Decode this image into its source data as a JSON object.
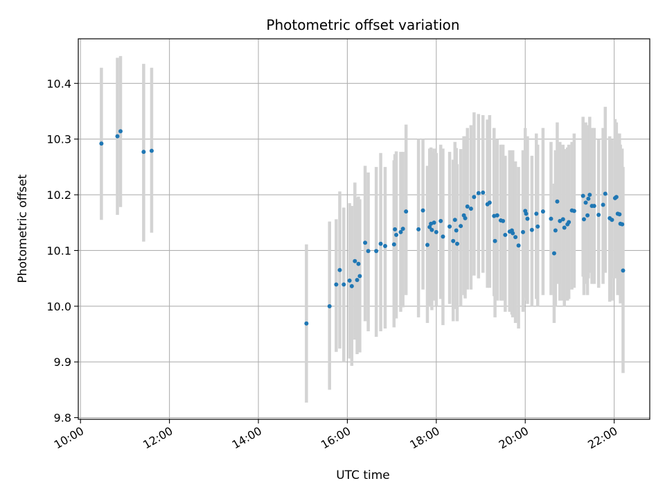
{
  "chart_data": {
    "type": "scatter",
    "title": "Photometric offset variation",
    "xlabel": "UTC time",
    "ylabel": "Photometric offset",
    "x_unit": "hours UTC",
    "xlim": [
      9.95,
      22.8
    ],
    "ylim": [
      9.797,
      10.48
    ],
    "xticks": [
      {
        "value": 10,
        "label": "10:00"
      },
      {
        "value": 12,
        "label": "12:00"
      },
      {
        "value": 14,
        "label": "14:00"
      },
      {
        "value": 16,
        "label": "16:00"
      },
      {
        "value": 18,
        "label": "18:00"
      },
      {
        "value": 20,
        "label": "20:00"
      },
      {
        "value": 22,
        "label": "22:00"
      }
    ],
    "yticks": [
      {
        "value": 9.8,
        "label": "9.8"
      },
      {
        "value": 9.9,
        "label": "9.9"
      },
      {
        "value": 10.0,
        "label": "10.0"
      },
      {
        "value": 10.1,
        "label": "10.1"
      },
      {
        "value": 10.2,
        "label": "10.2"
      },
      {
        "value": 10.3,
        "label": "10.3"
      },
      {
        "value": 10.4,
        "label": "10.4"
      }
    ],
    "grid": true,
    "point_color": "#1f77b4",
    "errorbar_color": "#d3d3d3",
    "points": [
      [
        10.47,
        10.292,
        10.155,
        10.428
      ],
      [
        10.83,
        10.305,
        10.164,
        10.446
      ],
      [
        10.9,
        10.314,
        10.178,
        10.449
      ],
      [
        11.42,
        10.277,
        10.116,
        10.435
      ],
      [
        11.6,
        10.279,
        10.132,
        10.428
      ],
      [
        15.08,
        9.969,
        9.827,
        10.111
      ],
      [
        15.6,
        10.0,
        9.85,
        10.152
      ],
      [
        15.75,
        10.039,
        9.918,
        10.156
      ],
      [
        15.83,
        10.065,
        9.924,
        10.206
      ],
      [
        15.92,
        10.039,
        9.9,
        10.177
      ],
      [
        16.05,
        10.046,
        9.906,
        10.185
      ],
      [
        16.1,
        10.036,
        9.893,
        10.18
      ],
      [
        16.17,
        10.081,
        9.94,
        10.222
      ],
      [
        16.22,
        10.047,
        9.914,
        10.195
      ],
      [
        16.28,
        10.054,
        9.917,
        10.192
      ],
      [
        16.25,
        10.076,
        9.936,
        10.197
      ],
      [
        16.4,
        10.114,
        9.973,
        10.252
      ],
      [
        16.47,
        10.099,
        9.955,
        10.24
      ],
      [
        16.65,
        10.099,
        9.945,
        10.25
      ],
      [
        16.75,
        10.112,
        9.955,
        10.275
      ],
      [
        16.85,
        10.108,
        9.96,
        10.25
      ],
      [
        17.05,
        10.111,
        9.962,
        10.262
      ],
      [
        17.07,
        10.138,
        9.988,
        10.273
      ],
      [
        17.1,
        10.128,
        9.978,
        10.278
      ],
      [
        17.2,
        10.133,
        9.99,
        10.277
      ],
      [
        17.25,
        10.139,
        9.998,
        10.277
      ],
      [
        17.32,
        10.17,
        10.02,
        10.326
      ],
      [
        17.6,
        10.138,
        9.98,
        10.3
      ],
      [
        17.7,
        10.172,
        10.03,
        10.3
      ],
      [
        17.8,
        10.11,
        9.97,
        10.252
      ],
      [
        17.85,
        10.142,
        10.0,
        10.283
      ],
      [
        17.88,
        10.148,
        10.01,
        10.285
      ],
      [
        17.95,
        10.15,
        10.01,
        10.283
      ],
      [
        17.9,
        10.137,
        9.993,
        10.277
      ],
      [
        18.0,
        10.133,
        10.0,
        10.275
      ],
      [
        18.1,
        10.153,
        10.013,
        10.29
      ],
      [
        18.15,
        10.125,
        9.966,
        10.283
      ],
      [
        18.3,
        10.143,
        10.004,
        10.277
      ],
      [
        18.38,
        10.117,
        9.973,
        10.263
      ],
      [
        18.42,
        10.155,
        10.015,
        10.295
      ],
      [
        18.45,
        10.136,
        9.995,
        10.284
      ],
      [
        18.47,
        10.112,
        9.973,
        10.255
      ],
      [
        18.55,
        10.144,
        10.0,
        10.282
      ],
      [
        18.62,
        10.163,
        10.02,
        10.305
      ],
      [
        18.65,
        10.158,
        10.014,
        10.305
      ],
      [
        18.7,
        10.179,
        10.03,
        10.32
      ],
      [
        18.78,
        10.175,
        10.03,
        10.325
      ],
      [
        18.85,
        10.196,
        10.055,
        10.348
      ],
      [
        18.95,
        10.203,
        10.05,
        10.345
      ],
      [
        19.05,
        10.204,
        10.06,
        10.343
      ],
      [
        19.15,
        10.183,
        10.033,
        10.335
      ],
      [
        19.2,
        10.186,
        10.033,
        10.343
      ],
      [
        19.3,
        10.162,
        10.018,
        10.32
      ],
      [
        19.32,
        10.117,
        9.98,
        10.26
      ],
      [
        19.37,
        10.163,
        10.01,
        10.3
      ],
      [
        19.45,
        10.154,
        10.01,
        10.29
      ],
      [
        19.5,
        10.153,
        10.01,
        10.29
      ],
      [
        19.55,
        10.128,
        9.99,
        10.27
      ],
      [
        19.65,
        10.134,
        9.99,
        10.28
      ],
      [
        19.7,
        10.136,
        9.985,
        10.277
      ],
      [
        19.72,
        10.131,
        9.98,
        10.28
      ],
      [
        19.78,
        10.124,
        9.97,
        10.26
      ],
      [
        19.85,
        10.109,
        9.96,
        10.25
      ],
      [
        19.95,
        10.133,
        9.99,
        10.28
      ],
      [
        20.0,
        10.171,
        10.015,
        10.32
      ],
      [
        20.02,
        10.166,
        10.01,
        10.3
      ],
      [
        20.05,
        10.157,
        10.004,
        10.305
      ],
      [
        20.15,
        10.137,
        10.0,
        10.27
      ],
      [
        20.25,
        10.166,
        10.013,
        10.31
      ],
      [
        20.28,
        10.143,
        10.0,
        10.29
      ],
      [
        20.4,
        10.17,
        10.02,
        10.32
      ],
      [
        20.58,
        10.157,
        10.02,
        10.295
      ],
      [
        20.65,
        10.095,
        9.97,
        10.22
      ],
      [
        20.68,
        10.136,
        10.0,
        10.28
      ],
      [
        20.72,
        10.188,
        10.04,
        10.33
      ],
      [
        20.78,
        10.153,
        10.01,
        10.295
      ],
      [
        20.85,
        10.156,
        10.01,
        10.29
      ],
      [
        20.88,
        10.141,
        10.0,
        10.282
      ],
      [
        20.95,
        10.147,
        10.01,
        10.285
      ],
      [
        20.98,
        10.151,
        10.013,
        10.29
      ],
      [
        21.05,
        10.172,
        10.03,
        10.295
      ],
      [
        21.1,
        10.171,
        10.033,
        10.31
      ],
      [
        21.3,
        10.198,
        10.053,
        10.34
      ],
      [
        21.32,
        10.156,
        10.02,
        10.3
      ],
      [
        21.36,
        10.186,
        10.04,
        10.33
      ],
      [
        21.4,
        10.163,
        10.02,
        10.31
      ],
      [
        21.42,
        10.193,
        10.05,
        10.325
      ],
      [
        21.45,
        10.2,
        10.06,
        10.34
      ],
      [
        21.5,
        10.18,
        10.04,
        10.32
      ],
      [
        21.55,
        10.18,
        10.04,
        10.32
      ],
      [
        21.65,
        10.164,
        10.033,
        10.3
      ],
      [
        21.75,
        10.182,
        10.04,
        10.32
      ],
      [
        21.8,
        10.202,
        10.06,
        10.358
      ],
      [
        21.9,
        10.158,
        10.008,
        10.305
      ],
      [
        21.95,
        10.155,
        10.01,
        10.3
      ],
      [
        22.02,
        10.194,
        10.05,
        10.336
      ],
      [
        22.05,
        10.196,
        10.06,
        10.33
      ],
      [
        22.08,
        10.166,
        10.02,
        10.31
      ],
      [
        22.12,
        10.165,
        10.02,
        10.31
      ],
      [
        22.14,
        10.148,
        10.005,
        10.29
      ],
      [
        22.18,
        10.147,
        10.008,
        10.283
      ],
      [
        22.2,
        10.064,
        9.88,
        10.25
      ]
    ]
  }
}
